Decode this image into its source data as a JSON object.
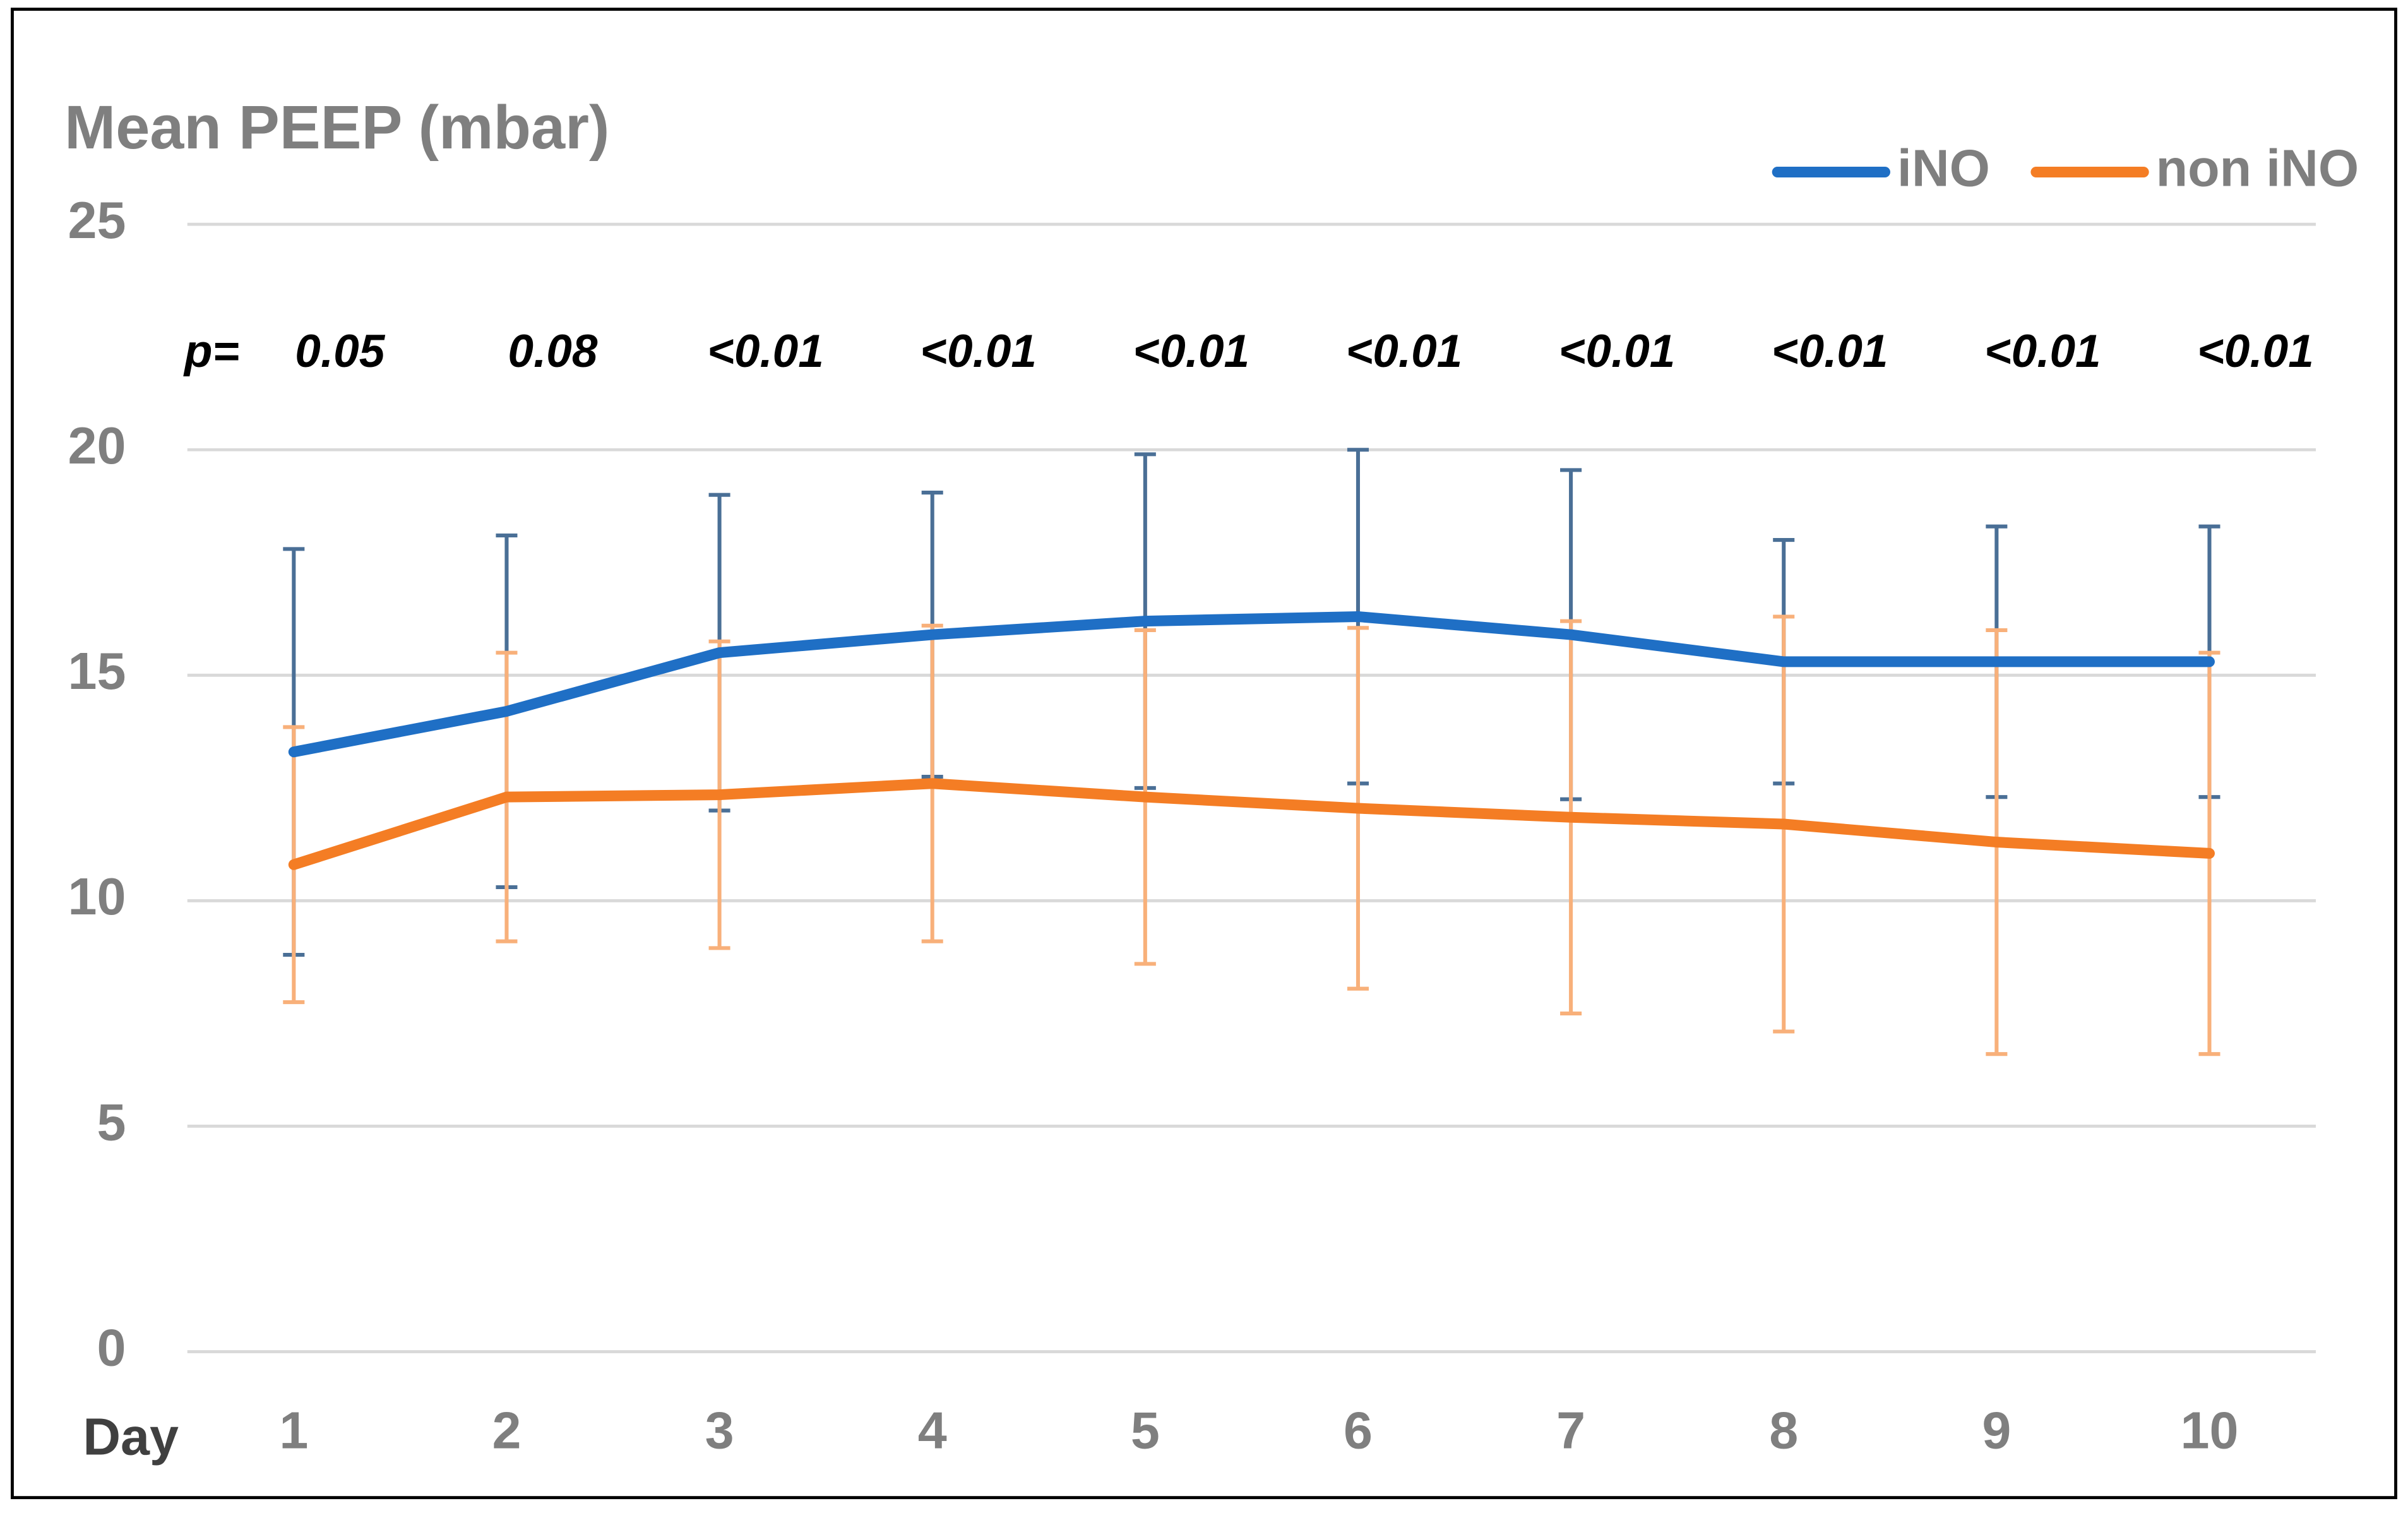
{
  "chart_data": {
    "type": "line",
    "title": "Mean PEEP (mbar)",
    "x_label": "Day",
    "categories": [
      "1",
      "2",
      "3",
      "4",
      "5",
      "6",
      "7",
      "8",
      "9",
      "10"
    ],
    "p_label": "p=",
    "p_values": [
      "0.05",
      "0.08",
      "<0.01",
      "<0.01",
      "<0.01",
      "<0.01",
      "<0.01",
      "<0.01",
      "<0.01",
      "<0.01"
    ],
    "series": [
      {
        "name": "iNO",
        "color": "#1f6fc5",
        "error_color": "#4a6f96",
        "values": [
          13.3,
          14.2,
          15.5,
          15.9,
          16.2,
          16.3,
          15.9,
          15.3,
          15.3,
          15.3
        ],
        "errors": [
          4.5,
          3.9,
          3.5,
          3.15,
          3.7,
          3.7,
          3.65,
          2.7,
          3.0,
          3.0
        ]
      },
      {
        "name": "non iNO",
        "color": "#f47d24",
        "error_color": "#f8b07a",
        "values": [
          10.8,
          12.3,
          12.35,
          12.6,
          12.3,
          12.05,
          11.85,
          11.7,
          11.3,
          11.05
        ],
        "errors": [
          3.05,
          3.2,
          3.4,
          3.5,
          3.7,
          4.0,
          4.35,
          4.6,
          4.7,
          4.45
        ]
      }
    ],
    "ylim": [
      0,
      25
    ],
    "yticks": [
      0,
      5,
      10,
      15,
      20,
      25
    ],
    "grid": true,
    "legend": "top-right"
  }
}
